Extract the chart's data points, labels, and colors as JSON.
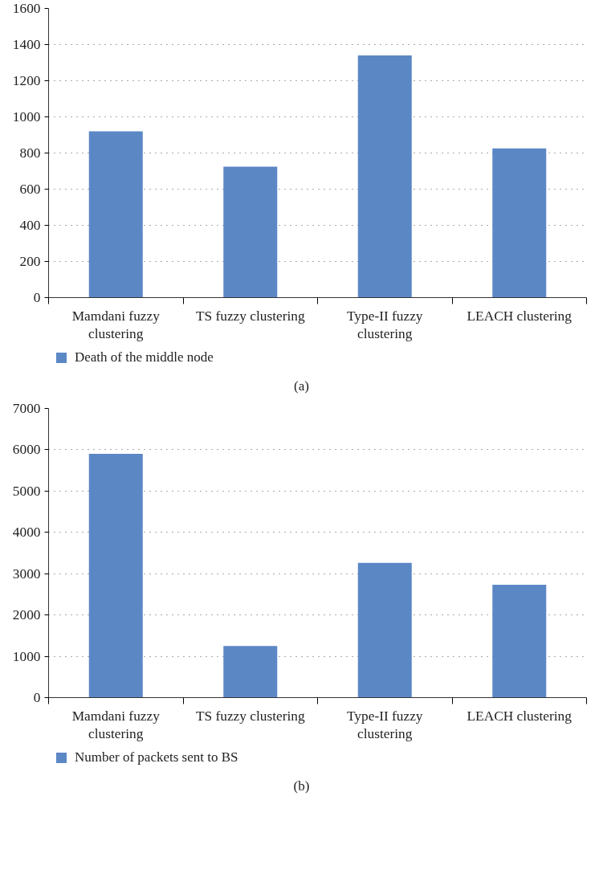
{
  "chart_data": [
    {
      "type": "bar",
      "categories": [
        "Mamdani fuzzy clustering",
        "TS fuzzy clustering",
        "Type-II fuzzy clustering",
        "LEACH clustering"
      ],
      "series": [
        {
          "name": "Death of the middle node",
          "color": "#5b87c5",
          "values": [
            920,
            725,
            1340,
            826
          ]
        }
      ],
      "ylim": [
        0,
        1600
      ],
      "yticks": [
        0,
        200,
        400,
        600,
        800,
        1000,
        1200,
        1400,
        1600
      ],
      "grid": "y",
      "legend": "bottom",
      "annotations": [
        "(a)"
      ]
    },
    {
      "type": "bar",
      "categories": [
        "Mamdani fuzzy clustering",
        "TS fuzzy clustering",
        "Type-II fuzzy clustering",
        "LEACH clustering"
      ],
      "series": [
        {
          "name": "Number of packets sent to BS",
          "color": "#5b87c5",
          "values": [
            5900,
            1250,
            3260,
            2730
          ]
        }
      ],
      "ylim": [
        0,
        7000
      ],
      "yticks": [
        0,
        1000,
        2000,
        3000,
        4000,
        5000,
        6000,
        7000
      ],
      "grid": "y",
      "legend": "bottom",
      "annotations": [
        "(b)"
      ]
    }
  ]
}
